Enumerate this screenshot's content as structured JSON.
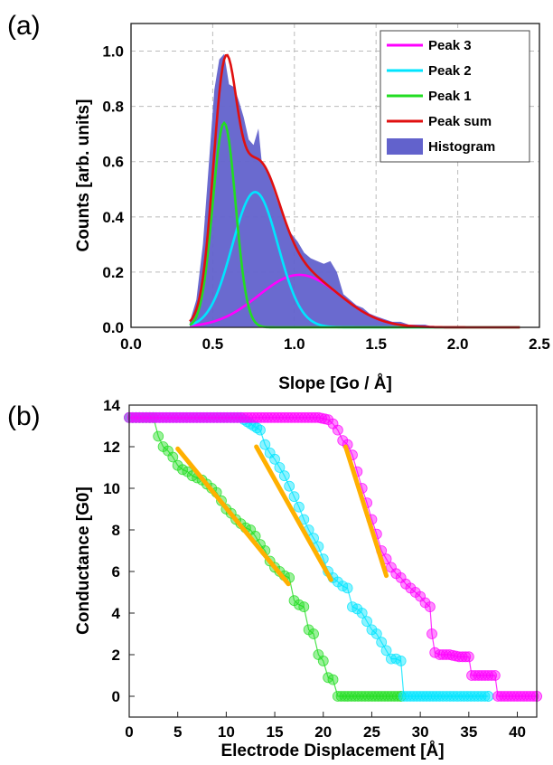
{
  "panel_a_label": "(a)",
  "panel_b_label": "(b)",
  "chart_data": [
    {
      "type": "area",
      "panel": "(a)",
      "xlabel": "Slope [Go / Å]",
      "ylabel": "Counts [arb. units]",
      "xlim": [
        0,
        2.5
      ],
      "ylim": [
        0,
        1.1
      ],
      "xticks": [
        "0.0",
        "0.5",
        "1.0",
        "1.5",
        "2.0",
        "2.5"
      ],
      "yticks": [
        "0.0",
        "0.2",
        "0.4",
        "0.6",
        "0.8",
        "1.0"
      ],
      "grid": true,
      "legend_position": "top-right",
      "series": [
        {
          "name": "Peak 3",
          "kind": "gaussian",
          "color": "#ff00ff",
          "center": 1.03,
          "width": 0.25,
          "amplitude": 0.19
        },
        {
          "name": "Peak 2",
          "kind": "gaussian",
          "color": "#00e5ff",
          "center": 0.76,
          "width": 0.14,
          "amplitude": 0.49
        },
        {
          "name": "Peak 1",
          "kind": "gaussian",
          "color": "#22dd22",
          "center": 0.57,
          "width": 0.07,
          "amplitude": 0.74
        },
        {
          "name": "Peak sum",
          "kind": "sum",
          "color": "#e01010"
        },
        {
          "name": "Histogram",
          "kind": "filled",
          "color": "#6262cc",
          "x": [
            0.36,
            0.4,
            0.44,
            0.48,
            0.51,
            0.54,
            0.57,
            0.6,
            0.63,
            0.66,
            0.69,
            0.72,
            0.75,
            0.78,
            0.8,
            0.83,
            0.86,
            0.9,
            0.94,
            0.98,
            1.02,
            1.06,
            1.1,
            1.14,
            1.18,
            1.22,
            1.26,
            1.3,
            1.34,
            1.38,
            1.42,
            1.46,
            1.5,
            1.55,
            1.6,
            1.65,
            1.7,
            1.75,
            1.8,
            1.86
          ],
          "y": [
            0.02,
            0.1,
            0.3,
            0.62,
            0.86,
            0.97,
            0.99,
            0.88,
            0.87,
            0.82,
            0.76,
            0.68,
            0.66,
            0.72,
            0.6,
            0.58,
            0.52,
            0.45,
            0.39,
            0.34,
            0.31,
            0.27,
            0.25,
            0.24,
            0.23,
            0.24,
            0.2,
            0.12,
            0.1,
            0.08,
            0.07,
            0.05,
            0.04,
            0.03,
            0.02,
            0.02,
            0.01,
            0.01,
            0.01,
            0.0
          ]
        }
      ]
    },
    {
      "type": "scatter",
      "panel": "(b)",
      "xlabel": "Electrode Displacement [Å]",
      "ylabel": "Conductance [G0]",
      "xlim": [
        0,
        42
      ],
      "ylim": [
        -1,
        14
      ],
      "xticks": [
        "0",
        "5",
        "10",
        "15",
        "20",
        "25",
        "30",
        "35",
        "40"
      ],
      "yticks": [
        "0",
        "2",
        "4",
        "6",
        "8",
        "10",
        "12",
        "14"
      ],
      "grid": false,
      "series": [
        {
          "color": "#22dd22",
          "points": [
            [
              0,
              13.4
            ],
            [
              2.5,
              13.4
            ],
            [
              3.0,
              12.5
            ],
            [
              3.5,
              12.0
            ],
            [
              4.0,
              11.8
            ],
            [
              4.5,
              11.5
            ],
            [
              5.0,
              11.1
            ],
            [
              5.5,
              10.9
            ],
            [
              6.0,
              10.8
            ],
            [
              6.5,
              10.6
            ],
            [
              7.0,
              10.5
            ],
            [
              7.5,
              10.4
            ],
            [
              8.0,
              10.2
            ],
            [
              8.5,
              10.0
            ],
            [
              9.0,
              9.8
            ],
            [
              9.5,
              9.4
            ],
            [
              10.0,
              9.0
            ],
            [
              10.5,
              8.8
            ],
            [
              11.0,
              8.5
            ],
            [
              11.5,
              8.3
            ],
            [
              12.0,
              8.1
            ],
            [
              12.5,
              8.0
            ],
            [
              13.0,
              7.7
            ],
            [
              13.5,
              7.3
            ],
            [
              14.0,
              7.0
            ],
            [
              14.5,
              6.5
            ],
            [
              15.0,
              6.2
            ],
            [
              15.5,
              6.0
            ],
            [
              16.0,
              5.8
            ],
            [
              16.5,
              5.7
            ],
            [
              17.0,
              4.6
            ],
            [
              17.5,
              4.4
            ],
            [
              18.0,
              4.3
            ],
            [
              18.5,
              3.2
            ],
            [
              19.0,
              3.0
            ],
            [
              19.5,
              2.0
            ],
            [
              20.0,
              1.7
            ],
            [
              20.5,
              0.9
            ],
            [
              21.0,
              0.8
            ],
            [
              21.5,
              0.0
            ],
            [
              25.0,
              0.0
            ],
            [
              28.0,
              0.0
            ]
          ]
        },
        {
          "color": "#00e5ff",
          "points": [
            [
              0,
              13.4
            ],
            [
              11.5,
              13.4
            ],
            [
              12.5,
              13.1
            ],
            [
              13.5,
              12.8
            ],
            [
              14.0,
              12.1
            ],
            [
              14.5,
              11.7
            ],
            [
              15.0,
              11.4
            ],
            [
              15.5,
              11.0
            ],
            [
              16.0,
              10.6
            ],
            [
              16.5,
              10.1
            ],
            [
              17.0,
              9.6
            ],
            [
              17.5,
              9.1
            ],
            [
              18.0,
              8.5
            ],
            [
              18.5,
              8.0
            ],
            [
              19.0,
              7.6
            ],
            [
              19.5,
              7.2
            ],
            [
              20.0,
              6.6
            ],
            [
              20.5,
              6.0
            ],
            [
              21.0,
              5.7
            ],
            [
              21.5,
              5.5
            ],
            [
              22.0,
              5.3
            ],
            [
              22.5,
              5.2
            ],
            [
              23.0,
              4.3
            ],
            [
              23.5,
              4.2
            ],
            [
              24.0,
              4.0
            ],
            [
              24.5,
              3.6
            ],
            [
              25.0,
              3.2
            ],
            [
              25.5,
              3.0
            ],
            [
              26.0,
              2.6
            ],
            [
              26.5,
              2.2
            ],
            [
              27.0,
              1.8
            ],
            [
              27.5,
              1.8
            ],
            [
              28.0,
              1.7
            ],
            [
              28.3,
              0.0
            ],
            [
              32.0,
              0.0
            ],
            [
              37.0,
              0.0
            ]
          ]
        },
        {
          "color": "#ff00ff",
          "points": [
            [
              0,
              13.4
            ],
            [
              19.5,
              13.4
            ],
            [
              20.5,
              13.3
            ],
            [
              21.0,
              13.1
            ],
            [
              21.5,
              12.8
            ],
            [
              22.0,
              12.3
            ],
            [
              22.5,
              12.1
            ],
            [
              23.0,
              11.6
            ],
            [
              23.5,
              10.8
            ],
            [
              24.0,
              10.0
            ],
            [
              24.5,
              9.3
            ],
            [
              25.0,
              8.5
            ],
            [
              25.5,
              7.8
            ],
            [
              26.0,
              7.0
            ],
            [
              26.5,
              6.6
            ],
            [
              27.0,
              6.2
            ],
            [
              27.5,
              5.9
            ],
            [
              28.0,
              5.7
            ],
            [
              28.5,
              5.4
            ],
            [
              29.0,
              5.2
            ],
            [
              29.5,
              5.0
            ],
            [
              30.0,
              4.8
            ],
            [
              30.5,
              4.5
            ],
            [
              31.0,
              4.3
            ],
            [
              31.2,
              3.0
            ],
            [
              31.5,
              2.1
            ],
            [
              32.0,
              2.0
            ],
            [
              33.0,
              2.0
            ],
            [
              34.0,
              1.9
            ],
            [
              35.0,
              1.9
            ],
            [
              35.3,
              1.0
            ],
            [
              36.0,
              1.0
            ],
            [
              37.0,
              1.0
            ],
            [
              37.7,
              1.0
            ],
            [
              38.0,
              0.0
            ],
            [
              40.0,
              0.0
            ],
            [
              42.0,
              0.0
            ]
          ]
        }
      ],
      "fit_lines": [
        {
          "color": "#ffb000",
          "x": [
            5.0,
            16.4
          ],
          "y": [
            11.9,
            5.4
          ]
        },
        {
          "color": "#ffb000",
          "x": [
            13.1,
            20.8
          ],
          "y": [
            12.0,
            5.6
          ]
        },
        {
          "color": "#ffb000",
          "x": [
            22.3,
            26.5
          ],
          "y": [
            12.0,
            5.8
          ]
        }
      ]
    }
  ]
}
